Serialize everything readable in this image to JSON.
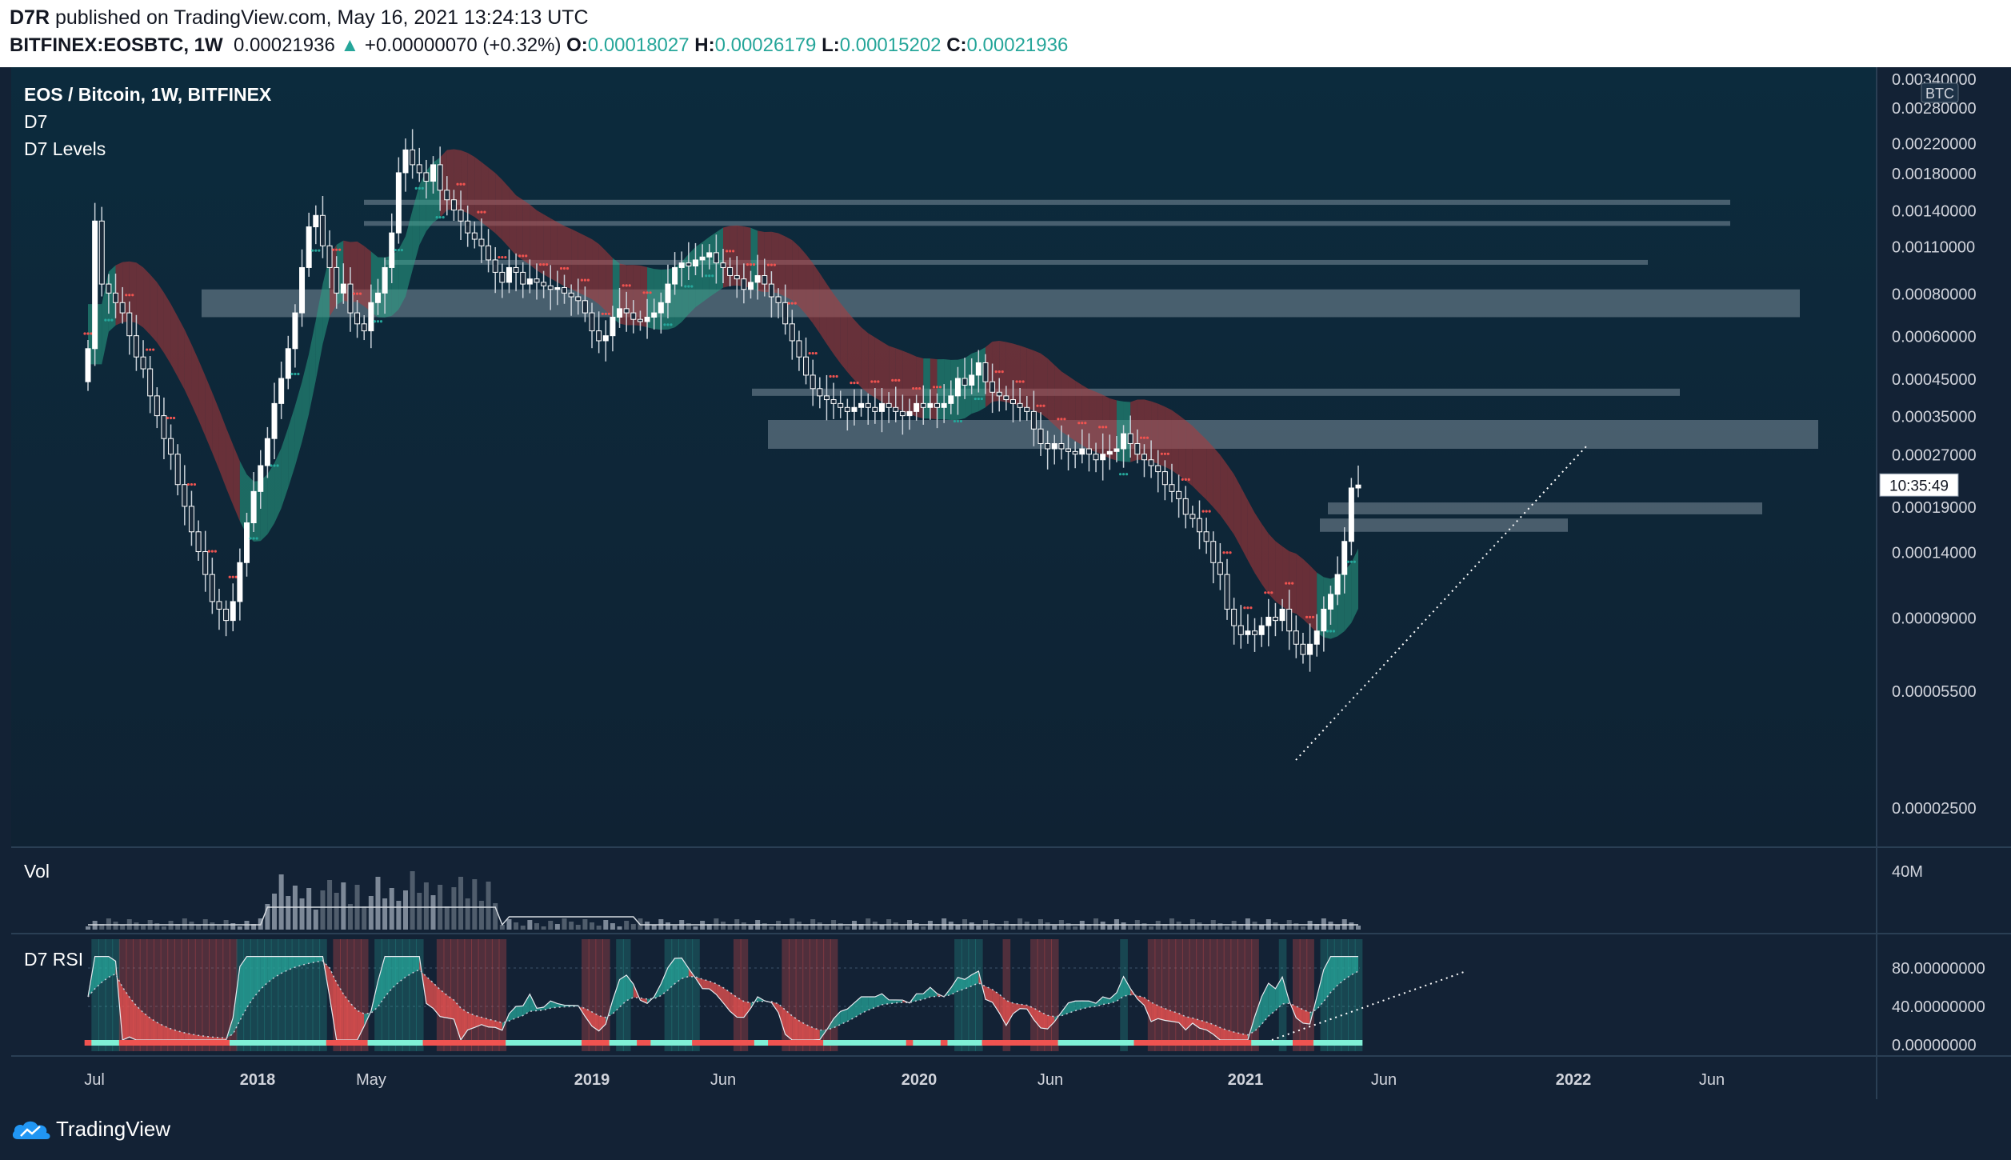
{
  "header": {
    "author": "D7R",
    "published_text": "published on TradingView.com, May 16, 2021 13:24:13 UTC",
    "symbol": "BITFINEX:EOSBTC, 1W",
    "price": "0.00021936",
    "change": "+0.00000070 (+0.32%)",
    "o_label": "O:",
    "o_value": "0.00018027",
    "h_label": "H:",
    "h_value": "0.00026179",
    "l_label": "L:",
    "l_value": "0.00015202",
    "c_label": "C:",
    "c_value": "0.00021936"
  },
  "legend": {
    "title": "EOS / Bitcoin, 1W, BITFINEX",
    "study1": "D7",
    "study2": "D7 Levels",
    "vol": "Vol",
    "rsi": "D7 RSI"
  },
  "footer": {
    "brand": "TradingView"
  },
  "colors": {
    "background": "#132235",
    "up": "#26a69a",
    "down": "#ef5350",
    "candle": "#ffffff",
    "cloud_red": "#b2393b",
    "cloud_teal": "#2aa386",
    "level_band": "#b8c6d0"
  },
  "chart_data": [
    {
      "type": "candlestick",
      "name": "EOS / Bitcoin, 1W, BITFINEX",
      "y_scale": "log",
      "currency_label": "BTC",
      "y_ticks": [
        "0.00340000",
        "0.00280000",
        "0.00220000",
        "0.00180000",
        "0.00140000",
        "0.00110000",
        "0.00080000",
        "0.00060000",
        "0.00045000",
        "0.00035000",
        "0.00027000",
        "0.00019000",
        "0.00014000",
        "0.00009000",
        "0.00005500",
        "0.00002500"
      ],
      "x_ticks": [
        "Jul",
        "2018",
        "May",
        "2019",
        "Jun",
        "2020",
        "Jun",
        "2021",
        "Jun",
        "2022",
        "Jun"
      ],
      "countdown": "10:35:49",
      "last_close": 0.00021936,
      "closes_approx": [
        0.00055,
        0.0013,
        0.00085,
        0.0008,
        0.00075,
        0.0007,
        0.0006,
        0.00052,
        0.00048,
        0.0004,
        0.00035,
        0.0003,
        0.00027,
        0.00022,
        0.00019,
        0.00016,
        0.00014,
        0.00012,
        0.0001,
        9.5e-05,
        8.8e-05,
        0.0001,
        0.00013,
        0.00017,
        0.00021,
        0.00025,
        0.0003,
        0.00038,
        0.00045,
        0.00055,
        0.0007,
        0.00095,
        0.00125,
        0.00135,
        0.0011,
        0.00095,
        0.0008,
        0.00085,
        0.0007,
        0.00065,
        0.00062,
        0.00075,
        0.0008,
        0.00095,
        0.0012,
        0.0018,
        0.0021,
        0.0019,
        0.0018,
        0.0017,
        0.0019,
        0.0016,
        0.0015,
        0.0014,
        0.0013,
        0.0012,
        0.00115,
        0.0011,
        0.001,
        0.00092,
        0.00086,
        0.00095,
        0.00092,
        0.00085,
        0.00088,
        0.00086,
        0.00084,
        0.00082,
        0.00083,
        0.0008,
        0.00078,
        0.00076,
        0.0007,
        0.00062,
        0.00058,
        0.0006,
        0.00068,
        0.00072,
        0.0007,
        0.00067,
        0.00066,
        0.00068,
        0.0007,
        0.00075,
        0.00085,
        0.00095,
        0.00098,
        0.00096,
        0.001,
        0.00102,
        0.00105,
        0.00098,
        0.00095,
        0.0009,
        0.00088,
        0.00082,
        0.00086,
        0.0009,
        0.00085,
        0.00078,
        0.00075,
        0.00065,
        0.00058,
        0.00052,
        0.00046,
        0.00042,
        0.0004,
        0.00039,
        0.00038,
        0.00037,
        0.00036,
        0.00037,
        0.00038,
        0.00037,
        0.00036,
        0.00038,
        0.00037,
        0.00036,
        0.00035,
        0.00036,
        0.00038,
        0.00037,
        0.00038,
        0.00037,
        0.00038,
        0.0004,
        0.00045,
        0.00043,
        0.00046,
        0.0005,
        0.00044,
        0.00041,
        0.0004,
        0.00039,
        0.00038,
        0.00037,
        0.00036,
        0.00032,
        0.00029,
        0.00028,
        0.00029,
        0.00028,
        0.000275,
        0.00027,
        0.00028,
        0.00027,
        0.00026,
        0.00027,
        0.000275,
        0.00028,
        0.00031,
        0.00029,
        0.00027,
        0.00026,
        0.00025,
        0.00024,
        0.00022,
        0.00021,
        0.0002,
        0.00018,
        0.000175,
        0.00016,
        0.00015,
        0.00013,
        0.00012,
        9.5e-05,
        8.5e-05,
        8e-05,
        8.2e-05,
        8e-05,
        8.5e-05,
        9e-05,
        8.8e-05,
        9.5e-05,
        8.2e-05,
        7.5e-05,
        7e-05,
        7.5e-05,
        8.2e-05,
        9.5e-05,
        0.000105,
        0.00012,
        0.00015,
        0.000215,
        0.00021936
      ],
      "levels": [
        {
          "low": 0.00145,
          "high": 0.0015
        },
        {
          "low": 0.00126,
          "high": 0.0013
        },
        {
          "low": 0.00097,
          "high": 0.001
        },
        {
          "low": 0.00068,
          "high": 0.00082
        },
        {
          "low": 0.0004,
          "high": 0.00042
        },
        {
          "low": 0.00028,
          "high": 0.00034
        },
        {
          "low": 0.00018,
          "high": 0.000195
        },
        {
          "low": 0.00016,
          "high": 0.000175
        }
      ]
    },
    {
      "type": "bar",
      "name": "Vol",
      "y_ticks": [
        "40M"
      ]
    },
    {
      "type": "line",
      "name": "D7 RSI",
      "y_ticks": [
        "80.00000000",
        "40.00000000",
        "0.00000000"
      ],
      "ylim": [
        0,
        100
      ]
    }
  ]
}
